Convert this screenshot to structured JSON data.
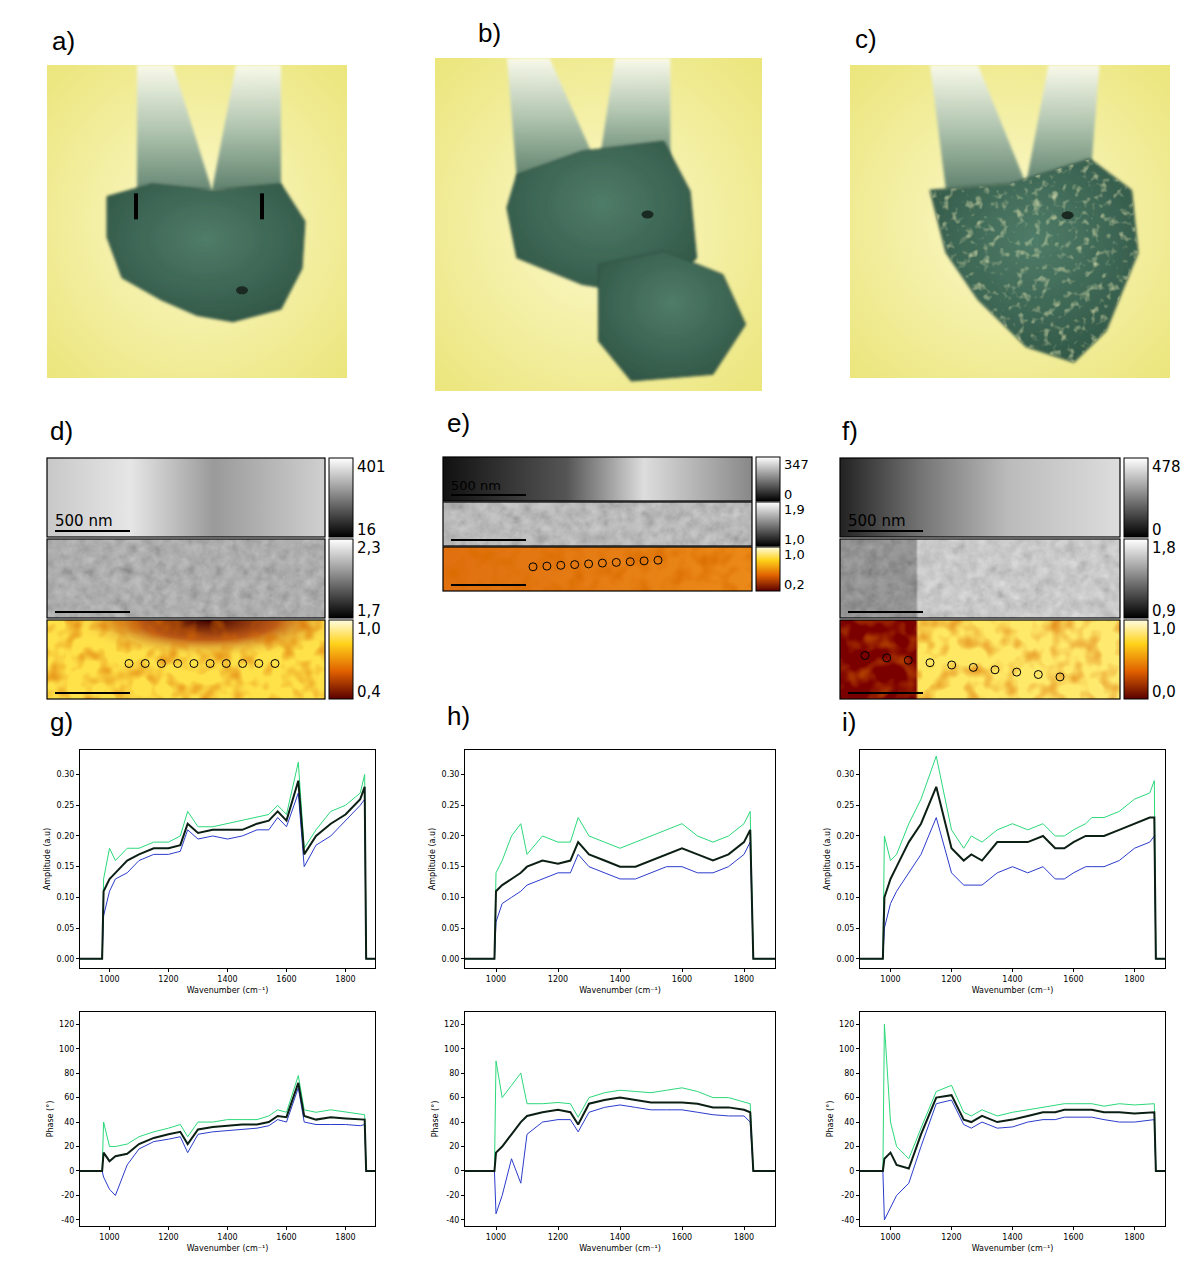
{
  "photos": [
    {
      "label": "a)"
    },
    {
      "label": "b)"
    },
    {
      "label": "c)"
    }
  ],
  "maps": [
    {
      "label": "d)",
      "scale_bar": "500 nm",
      "colorbars": [
        [
          "401",
          "16"
        ],
        [
          "2,3",
          "1,7"
        ],
        [
          "1,0",
          "0,4"
        ]
      ]
    },
    {
      "label": "e)",
      "scale_bar": "500 nm",
      "colorbars": [
        [
          "347",
          "0"
        ],
        [
          "1,9",
          "1,0"
        ],
        [
          "1,0",
          "0,2"
        ]
      ]
    },
    {
      "label": "f)",
      "scale_bar": "500 nm",
      "colorbars": [
        [
          "478",
          "0"
        ],
        [
          "1,8",
          "0,9"
        ],
        [
          "1,0",
          "0,0"
        ]
      ]
    }
  ],
  "chart_data": [
    {
      "label": "g)",
      "type": "line",
      "grid": false,
      "xlabel": "Wavenumber (cm⁻¹)",
      "ylabel": "Amplitude (a.u)",
      "x": [
        900,
        975,
        980,
        1000,
        1020,
        1060,
        1100,
        1150,
        1200,
        1240,
        1265,
        1300,
        1350,
        1400,
        1450,
        1500,
        1540,
        1570,
        1600,
        1640,
        1660,
        1700,
        1750,
        1800,
        1850,
        1865,
        1870,
        1900
      ],
      "xlim": [
        900,
        1900
      ],
      "xticks": [
        1000,
        1200,
        1400,
        1600,
        1800
      ],
      "ylim": [
        -0.015,
        0.34
      ],
      "yticks": [
        {
          "value": 0,
          "label": "0.00"
        },
        {
          "value": 0.05,
          "label": "0.05"
        },
        {
          "value": 0.1,
          "label": "0.10"
        },
        {
          "value": 0.15,
          "label": "0.15"
        },
        {
          "value": 0.2,
          "label": "0.20"
        },
        {
          "value": 0.25,
          "label": "0.25"
        },
        {
          "value": 0.3,
          "label": "0.30"
        }
      ],
      "series": [
        {
          "color": "#2b3ccc",
          "values": [
            0,
            0,
            0.07,
            0.11,
            0.13,
            0.14,
            0.16,
            0.17,
            0.17,
            0.175,
            0.21,
            0.195,
            0.2,
            0.195,
            0.2,
            0.21,
            0.21,
            0.23,
            0.215,
            0.27,
            0.15,
            0.185,
            0.2,
            0.225,
            0.25,
            0.26,
            0,
            0
          ]
        },
        {
          "color": "#2bd97a",
          "values": [
            0,
            0,
            0.13,
            0.18,
            0.16,
            0.18,
            0.18,
            0.19,
            0.19,
            0.2,
            0.24,
            0.215,
            0.215,
            0.22,
            0.225,
            0.23,
            0.235,
            0.25,
            0.235,
            0.32,
            0.18,
            0.21,
            0.24,
            0.25,
            0.27,
            0.3,
            0,
            0
          ]
        },
        {
          "color": "#0b1f14",
          "values": [
            0,
            0,
            0.11,
            0.13,
            0.14,
            0.16,
            0.17,
            0.18,
            0.18,
            0.185,
            0.22,
            0.205,
            0.21,
            0.21,
            0.21,
            0.22,
            0.225,
            0.24,
            0.225,
            0.29,
            0.17,
            0.2,
            0.22,
            0.235,
            0.26,
            0.28,
            0,
            0
          ]
        }
      ]
    },
    {
      "type": "line",
      "grid": false,
      "xlabel": "Wavenumber (cm⁻¹)",
      "ylabel": "Phase (°)",
      "x": [
        900,
        975,
        980,
        1000,
        1020,
        1060,
        1100,
        1150,
        1200,
        1240,
        1265,
        1300,
        1350,
        1400,
        1450,
        1500,
        1540,
        1570,
        1600,
        1640,
        1660,
        1700,
        1750,
        1800,
        1850,
        1865,
        1870,
        1900
      ],
      "xlim": [
        900,
        1900
      ],
      "xticks": [
        1000,
        1200,
        1400,
        1600,
        1800
      ],
      "ylim": [
        -45,
        130
      ],
      "yticks": [
        -40,
        -20,
        0,
        20,
        40,
        60,
        80,
        100,
        120
      ],
      "series": [
        {
          "color": "#2b3ccc",
          "values": [
            0,
            0,
            -5,
            -15,
            -20,
            5,
            18,
            24,
            26,
            28,
            15,
            30,
            32,
            33,
            34,
            35,
            37,
            42,
            40,
            68,
            40,
            38,
            38,
            38,
            37,
            38,
            0,
            0
          ]
        },
        {
          "color": "#2bd97a",
          "values": [
            0,
            0,
            40,
            20,
            20,
            22,
            28,
            32,
            35,
            38,
            28,
            40,
            40,
            42,
            42,
            42,
            45,
            50,
            48,
            78,
            50,
            48,
            50,
            48,
            46,
            46,
            0,
            0
          ]
        },
        {
          "color": "#0b1f14",
          "values": [
            0,
            0,
            15,
            8,
            12,
            14,
            22,
            27,
            30,
            32,
            22,
            34,
            36,
            37,
            38,
            38,
            40,
            45,
            44,
            72,
            45,
            42,
            44,
            43,
            42,
            42,
            0,
            0
          ]
        }
      ]
    },
    {
      "label": "h)",
      "type": "line",
      "grid": false,
      "xlabel": "Wavenumber (cm⁻¹)",
      "ylabel": "Amplitude (a.u)",
      "x": [
        900,
        995,
        1000,
        1020,
        1050,
        1080,
        1100,
        1150,
        1200,
        1240,
        1265,
        1300,
        1350,
        1400,
        1450,
        1500,
        1550,
        1600,
        1650,
        1700,
        1750,
        1800,
        1820,
        1830,
        1900
      ],
      "xlim": [
        900,
        1900
      ],
      "xticks": [
        1000,
        1200,
        1400,
        1600,
        1800
      ],
      "ylim": [
        -0.015,
        0.34
      ],
      "yticks": [
        {
          "value": 0,
          "label": "0.00"
        },
        {
          "value": 0.05,
          "label": "0.05"
        },
        {
          "value": 0.1,
          "label": "0.10"
        },
        {
          "value": 0.15,
          "label": "0.15"
        },
        {
          "value": 0.2,
          "label": "0.20"
        },
        {
          "value": 0.25,
          "label": "0.25"
        },
        {
          "value": 0.3,
          "label": "0.30"
        }
      ],
      "series": [
        {
          "color": "#2b3ccc",
          "values": [
            0,
            0,
            0.06,
            0.09,
            0.1,
            0.11,
            0.12,
            0.13,
            0.14,
            0.14,
            0.17,
            0.15,
            0.14,
            0.13,
            0.13,
            0.14,
            0.15,
            0.15,
            0.14,
            0.14,
            0.15,
            0.17,
            0.19,
            0,
            0
          ]
        },
        {
          "color": "#2bd97a",
          "values": [
            0,
            0,
            0.14,
            0.16,
            0.2,
            0.22,
            0.17,
            0.2,
            0.19,
            0.19,
            0.23,
            0.2,
            0.19,
            0.18,
            0.19,
            0.2,
            0.21,
            0.22,
            0.2,
            0.19,
            0.2,
            0.22,
            0.24,
            0,
            0
          ]
        },
        {
          "color": "#0b1f14",
          "values": [
            0,
            0,
            0.11,
            0.12,
            0.13,
            0.14,
            0.15,
            0.16,
            0.155,
            0.16,
            0.19,
            0.17,
            0.16,
            0.15,
            0.15,
            0.16,
            0.17,
            0.18,
            0.17,
            0.16,
            0.17,
            0.19,
            0.21,
            0,
            0
          ]
        }
      ]
    },
    {
      "type": "line",
      "grid": false,
      "xlabel": "Wavenumber (cm⁻¹)",
      "ylabel": "Phase (°)",
      "x": [
        900,
        995,
        1000,
        1020,
        1050,
        1080,
        1100,
        1150,
        1200,
        1240,
        1265,
        1300,
        1350,
        1400,
        1450,
        1500,
        1550,
        1600,
        1650,
        1700,
        1750,
        1800,
        1820,
        1830,
        1900
      ],
      "xlim": [
        900,
        1900
      ],
      "xticks": [
        1000,
        1200,
        1400,
        1600,
        1800
      ],
      "ylim": [
        -45,
        130
      ],
      "yticks": [
        -40,
        -20,
        0,
        20,
        40,
        60,
        80,
        100,
        120
      ],
      "series": [
        {
          "color": "#2b3ccc",
          "values": [
            0,
            0,
            -35,
            -20,
            10,
            -10,
            30,
            40,
            42,
            42,
            32,
            48,
            52,
            54,
            52,
            50,
            50,
            50,
            48,
            46,
            45,
            45,
            40,
            0,
            0
          ]
        },
        {
          "color": "#2bd97a",
          "values": [
            0,
            0,
            90,
            60,
            70,
            80,
            55,
            55,
            56,
            55,
            44,
            60,
            64,
            66,
            65,
            64,
            66,
            68,
            65,
            60,
            60,
            56,
            55,
            0,
            0
          ]
        },
        {
          "color": "#0b1f14",
          "values": [
            0,
            0,
            15,
            20,
            30,
            40,
            45,
            48,
            50,
            48,
            38,
            55,
            58,
            60,
            58,
            56,
            56,
            56,
            55,
            52,
            52,
            50,
            48,
            0,
            0
          ]
        }
      ]
    },
    {
      "label": "i)",
      "type": "line",
      "grid": false,
      "xlabel": "Wavenumber (cm⁻¹)",
      "ylabel": "Amplitude (a.u)",
      "x": [
        900,
        975,
        980,
        1000,
        1020,
        1060,
        1100,
        1150,
        1200,
        1240,
        1265,
        1300,
        1350,
        1400,
        1450,
        1500,
        1540,
        1570,
        1600,
        1640,
        1660,
        1700,
        1750,
        1800,
        1850,
        1865,
        1870,
        1900
      ],
      "xlim": [
        900,
        1900
      ],
      "xticks": [
        1000,
        1200,
        1400,
        1600,
        1800
      ],
      "ylim": [
        -0.015,
        0.34
      ],
      "yticks": [
        {
          "value": 0,
          "label": "0.00"
        },
        {
          "value": 0.05,
          "label": "0.05"
        },
        {
          "value": 0.1,
          "label": "0.10"
        },
        {
          "value": 0.15,
          "label": "0.15"
        },
        {
          "value": 0.2,
          "label": "0.20"
        },
        {
          "value": 0.25,
          "label": "0.25"
        },
        {
          "value": 0.3,
          "label": "0.30"
        }
      ],
      "series": [
        {
          "color": "#2b3ccc",
          "values": [
            0,
            0,
            0.05,
            0.09,
            0.11,
            0.14,
            0.17,
            0.23,
            0.14,
            0.12,
            0.12,
            0.12,
            0.14,
            0.15,
            0.14,
            0.15,
            0.13,
            0.13,
            0.14,
            0.15,
            0.15,
            0.15,
            0.16,
            0.18,
            0.19,
            0.2,
            0,
            0
          ]
        },
        {
          "color": "#2bd97a",
          "values": [
            0,
            0,
            0.2,
            0.16,
            0.17,
            0.22,
            0.26,
            0.33,
            0.21,
            0.18,
            0.2,
            0.19,
            0.21,
            0.22,
            0.21,
            0.22,
            0.2,
            0.2,
            0.21,
            0.22,
            0.23,
            0.23,
            0.24,
            0.26,
            0.27,
            0.29,
            0,
            0
          ]
        },
        {
          "color": "#0b1f14",
          "values": [
            0,
            0,
            0.1,
            0.13,
            0.15,
            0.19,
            0.22,
            0.28,
            0.18,
            0.16,
            0.17,
            0.16,
            0.19,
            0.19,
            0.19,
            0.2,
            0.18,
            0.18,
            0.19,
            0.2,
            0.2,
            0.2,
            0.21,
            0.22,
            0.23,
            0.23,
            0,
            0
          ]
        }
      ]
    },
    {
      "type": "line",
      "grid": false,
      "xlabel": "Wavenumber (cm⁻¹)",
      "ylabel": "Phase (°)",
      "x": [
        900,
        975,
        980,
        1000,
        1020,
        1060,
        1100,
        1150,
        1200,
        1240,
        1265,
        1300,
        1350,
        1400,
        1450,
        1500,
        1540,
        1570,
        1600,
        1640,
        1660,
        1700,
        1750,
        1800,
        1850,
        1865,
        1870,
        1900
      ],
      "xlim": [
        900,
        1900
      ],
      "xticks": [
        1000,
        1200,
        1400,
        1600,
        1800
      ],
      "ylim": [
        -45,
        130
      ],
      "yticks": [
        -40,
        -20,
        0,
        20,
        40,
        60,
        80,
        100,
        120
      ],
      "series": [
        {
          "color": "#2b3ccc",
          "values": [
            0,
            0,
            -40,
            -30,
            -20,
            -10,
            20,
            55,
            58,
            38,
            35,
            40,
            35,
            36,
            40,
            42,
            42,
            44,
            44,
            44,
            44,
            42,
            40,
            40,
            42,
            42,
            0,
            0
          ]
        },
        {
          "color": "#2bd97a",
          "values": [
            0,
            0,
            120,
            40,
            20,
            10,
            35,
            65,
            70,
            48,
            45,
            50,
            45,
            48,
            50,
            52,
            54,
            55,
            55,
            55,
            55,
            53,
            55,
            54,
            55,
            55,
            0,
            0
          ]
        },
        {
          "color": "#0b1f14",
          "values": [
            0,
            0,
            10,
            15,
            5,
            2,
            30,
            60,
            62,
            42,
            40,
            45,
            40,
            42,
            45,
            48,
            48,
            50,
            50,
            50,
            50,
            48,
            48,
            47,
            48,
            48,
            0,
            0
          ]
        }
      ]
    }
  ]
}
